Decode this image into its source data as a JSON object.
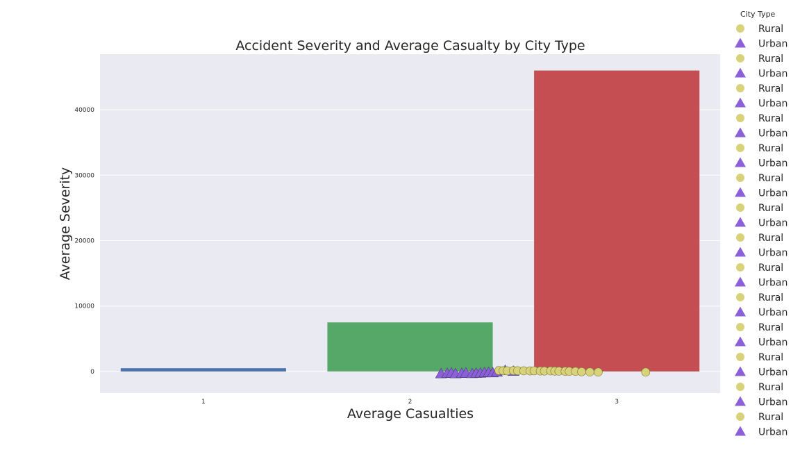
{
  "chart_data": {
    "type": "bar",
    "title": "Accident Severity and Average Casualty by City Type",
    "xlabel": "Average Casualties",
    "ylabel": "Average Severity",
    "categories": [
      "1",
      "2",
      "3"
    ],
    "values": [
      500,
      7500,
      46000
    ],
    "ylim": [
      -3300,
      48500
    ],
    "yticks": [
      0,
      10000,
      20000,
      30000,
      40000
    ],
    "grid": true,
    "colors": {
      "plot_background": "#EAEAF2",
      "grid": "#FFFFFF",
      "bars": [
        "#4C72B0",
        "#55A868",
        "#C44E52"
      ],
      "rural": "#D8D27A",
      "urban": "#8B60D8"
    },
    "legend": {
      "title": "City Type",
      "placement": "right, outside plot",
      "entries": [
        {
          "label": "Rural",
          "marker": "circle"
        },
        {
          "label": "Urban",
          "marker": "triangle"
        },
        {
          "label": "Rural",
          "marker": "circle"
        },
        {
          "label": "Urban",
          "marker": "triangle"
        },
        {
          "label": "Rural",
          "marker": "circle"
        },
        {
          "label": "Urban",
          "marker": "triangle"
        },
        {
          "label": "Rural",
          "marker": "circle"
        },
        {
          "label": "Urban",
          "marker": "triangle"
        },
        {
          "label": "Rural",
          "marker": "circle"
        },
        {
          "label": "Urban",
          "marker": "triangle"
        },
        {
          "label": "Rural",
          "marker": "circle"
        },
        {
          "label": "Urban",
          "marker": "triangle"
        },
        {
          "label": "Rural",
          "marker": "circle"
        },
        {
          "label": "Urban",
          "marker": "triangle"
        },
        {
          "label": "Rural",
          "marker": "circle"
        },
        {
          "label": "Urban",
          "marker": "triangle"
        },
        {
          "label": "Rural",
          "marker": "circle"
        },
        {
          "label": "Urban",
          "marker": "triangle"
        },
        {
          "label": "Rural",
          "marker": "circle"
        },
        {
          "label": "Urban",
          "marker": "triangle"
        },
        {
          "label": "Rural",
          "marker": "circle"
        },
        {
          "label": "Urban",
          "marker": "triangle"
        },
        {
          "label": "Rural",
          "marker": "circle"
        },
        {
          "label": "Urban",
          "marker": "triangle"
        },
        {
          "label": "Rural",
          "marker": "circle"
        },
        {
          "label": "Urban",
          "marker": "triangle"
        },
        {
          "label": "Rural",
          "marker": "circle"
        },
        {
          "label": "Urban",
          "marker": "triangle"
        }
      ]
    },
    "scatter": {
      "urban": {
        "x": [
          2.15,
          2.18,
          2.2,
          2.22,
          2.25,
          2.27,
          2.3,
          2.32,
          2.34,
          2.36,
          2.38,
          2.4,
          2.42,
          2.46,
          2.5
        ],
        "y": [
          -350,
          -300,
          -250,
          -350,
          -300,
          -250,
          -320,
          -280,
          -260,
          -200,
          -150,
          -200,
          -100,
          150,
          20
        ]
      },
      "rural": {
        "x": [
          2.43,
          2.45,
          2.47,
          2.5,
          2.52,
          2.55,
          2.58,
          2.6,
          2.63,
          2.65,
          2.68,
          2.7,
          2.72,
          2.75,
          2.77,
          2.8,
          2.83,
          2.87,
          2.91,
          3.14
        ],
        "y": [
          150,
          120,
          100,
          140,
          120,
          100,
          90,
          110,
          80,
          70,
          90,
          60,
          50,
          30,
          20,
          10,
          -50,
          -80,
          -100,
          -100
        ]
      }
    }
  }
}
